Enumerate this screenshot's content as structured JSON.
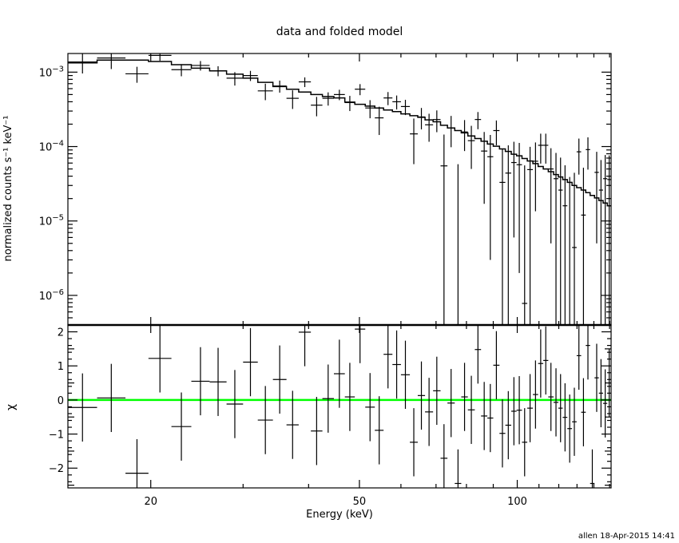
{
  "chart_data": [
    {
      "type": "line",
      "panel": "spectrum",
      "title": "data and folded model",
      "ylabel": "normalized counts s⁻¹ keV⁻¹",
      "yscale": "log",
      "xscale": "log",
      "xlim": [
        13.9,
        151
      ],
      "ylim": [
        4e-07,
        0.00178
      ],
      "yticks": [
        {
          "value": 0.001,
          "base": "10",
          "exp": "−3"
        },
        {
          "value": 0.0001,
          "base": "10",
          "exp": "−4"
        },
        {
          "value": 1e-05,
          "base": "10",
          "exp": "−5"
        },
        {
          "value": 1e-06,
          "base": "10",
          "exp": "−6"
        }
      ],
      "energy_edges": [
        13.9,
        15.8,
        17.9,
        19.8,
        21.9,
        23.9,
        25.9,
        27.9,
        30.0,
        32.0,
        34.2,
        36.3,
        38.3,
        40.4,
        42.5,
        44.7,
        46.9,
        49.0,
        51.3,
        53.5,
        55.6,
        57.8,
        60.0,
        62.4,
        64.6,
        66.7,
        69.1,
        71.4,
        73.6,
        76.0,
        78.2,
        80.5,
        83.0,
        85.3,
        87.7,
        90.0,
        92.5,
        94.9,
        97.4,
        99.7,
        102.1,
        104.5,
        107.1,
        109.6,
        112.1,
        114.6,
        117.3,
        119.8,
        122.1,
        124.6,
        127.2,
        129.8,
        132.4,
        135.1,
        137.7,
        140.4,
        143.1,
        145.8,
        148.5,
        151.0
      ],
      "series": [
        {
          "name": "data",
          "style": "crosses",
          "values": [
            0.00137,
            0.00155,
            0.00095,
            0.00168,
            0.00108,
            0.00123,
            0.00104,
            0.00083,
            0.0009,
            0.00056,
            0.00065,
            0.000445,
            0.00074,
            0.00036,
            0.000445,
            0.0005,
            0.00039,
            0.00059,
            0.00033,
            0.000243,
            0.00045,
            0.0004,
            0.000345,
            0.000148,
            0.00025,
            0.000196,
            0.000231,
            5.5e-05,
            0.000178,
            -1.2e-05,
            0.000157,
            0.00012,
            0.000231,
            8.7e-05,
            7.3e-05,
            0.000164,
            3.3e-05,
            4.4e-05,
            6.1e-05,
            5.7e-05,
            7.8e-07,
            4.9e-05,
            6.35e-05,
            0.000104,
            0.000104,
            5e-05,
            3.7e-05,
            2.6e-05,
            1.6e-05,
            -1e-06,
            4.4e-06,
            8.5e-05,
            1.2e-05,
            9.1e-05,
            -7.6e-05,
            4.5e-05,
            2.6e-05,
            3.7e-05,
            3.6e-05
          ],
          "errors": [
            0.00041,
            0.00045,
            0.00023,
            0.00026,
            0.0002,
            0.00018,
            0.00016,
            0.00017,
            0.00014,
            0.00014,
            0.00012,
            0.000125,
            0.00011,
            0.000105,
            9e-05,
            8e-05,
            9e-05,
            0.0001,
            9e-05,
            0.0001,
            9e-05,
            8.5e-05,
            8e-05,
            9e-05,
            8e-05,
            8e-05,
            7.5e-05,
            9e-05,
            8e-05,
            7e-05,
            7e-05,
            7e-05,
            6e-05,
            7e-05,
            7e-05,
            6e-05,
            6e-05,
            6e-05,
            5.5e-05,
            5.5e-05,
            5.5e-05,
            5e-05,
            5e-05,
            4.5e-05,
            4.5e-05,
            4.5e-05,
            4.5e-05,
            4.5e-05,
            4e-05,
            4e-05,
            4e-05,
            4.3e-05,
            4e-05,
            4.2e-05,
            4e-05,
            4e-05,
            4e-05,
            4e-05,
            4e-05
          ]
        },
        {
          "name": "folded model",
          "style": "histogram",
          "values": [
            0.00133,
            0.00145,
            0.00145,
            0.00139,
            0.00126,
            0.00113,
            0.00104,
            0.00094,
            0.00083,
            0.00073,
            0.00064,
            0.00059,
            0.00054,
            0.0005,
            0.00047,
            0.00045,
            0.000395,
            0.00037,
            0.00035,
            0.00033,
            0.00031,
            0.000295,
            0.000275,
            0.00026,
            0.000247,
            0.000228,
            0.000215,
            0.000193,
            0.000178,
            0.000164,
            0.000153,
            0.000139,
            0.000128,
            0.000118,
            0.000108,
            0.000101,
            9.3e-05,
            8.6e-05,
            7.9e-05,
            7.5e-05,
            6.9e-05,
            6.4e-05,
            5.9e-05,
            5.4e-05,
            5e-05,
            4.6e-05,
            4.2e-05,
            3.9e-05,
            3.6e-05,
            3.3e-05,
            3e-05,
            2.8e-05,
            2.6e-05,
            2.4e-05,
            2.2e-05,
            2.04e-05,
            1.88e-05,
            1.74e-05,
            1.6e-05
          ]
        }
      ]
    },
    {
      "type": "scatter",
      "panel": "residuals",
      "ylabel": "χ",
      "xlabel": "Energy (keV)",
      "xscale": "log",
      "xlim": [
        13.9,
        151
      ],
      "ylim": [
        -2.58,
        2.2
      ],
      "xticks": [
        {
          "value": 20,
          "label": "20"
        },
        {
          "value": 50,
          "label": "50"
        },
        {
          "value": 100,
          "label": "100"
        }
      ],
      "yticks": [
        {
          "value": 2,
          "label": "2"
        },
        {
          "value": 1,
          "label": "1"
        },
        {
          "value": 0,
          "label": "0"
        },
        {
          "value": -1,
          "label": "−1"
        },
        {
          "value": -2,
          "label": "−2"
        }
      ],
      "zero_line_color": "#00ff00",
      "series": [
        {
          "name": "residuals (chi)",
          "style": "crosses",
          "values": [
            -0.22,
            0.06,
            -2.15,
            1.22,
            -0.78,
            0.55,
            0.53,
            -0.12,
            1.11,
            -0.59,
            0.6,
            -0.73,
            1.99,
            -0.91,
            0.04,
            0.77,
            0.09,
            2.08,
            -0.21,
            -0.89,
            1.34,
            1.04,
            0.74,
            -1.24,
            0.13,
            -0.35,
            0.27,
            -1.71,
            -0.09,
            -2.45,
            0.09,
            -0.29,
            1.48,
            -0.47,
            -0.53,
            1.02,
            -0.98,
            -0.74,
            -0.33,
            -0.3,
            -1.24,
            -0.24,
            0.16,
            1.07,
            1.16,
            0.09,
            -0.07,
            -0.24,
            -0.51,
            -0.84,
            -0.64,
            1.3,
            -0.36,
            1.6,
            -2.45,
            0.65,
            0.2,
            -0.1,
            0.5
          ],
          "errors": 1.0
        }
      ]
    }
  ],
  "footer": "allen 18-Apr-2015 14:41"
}
